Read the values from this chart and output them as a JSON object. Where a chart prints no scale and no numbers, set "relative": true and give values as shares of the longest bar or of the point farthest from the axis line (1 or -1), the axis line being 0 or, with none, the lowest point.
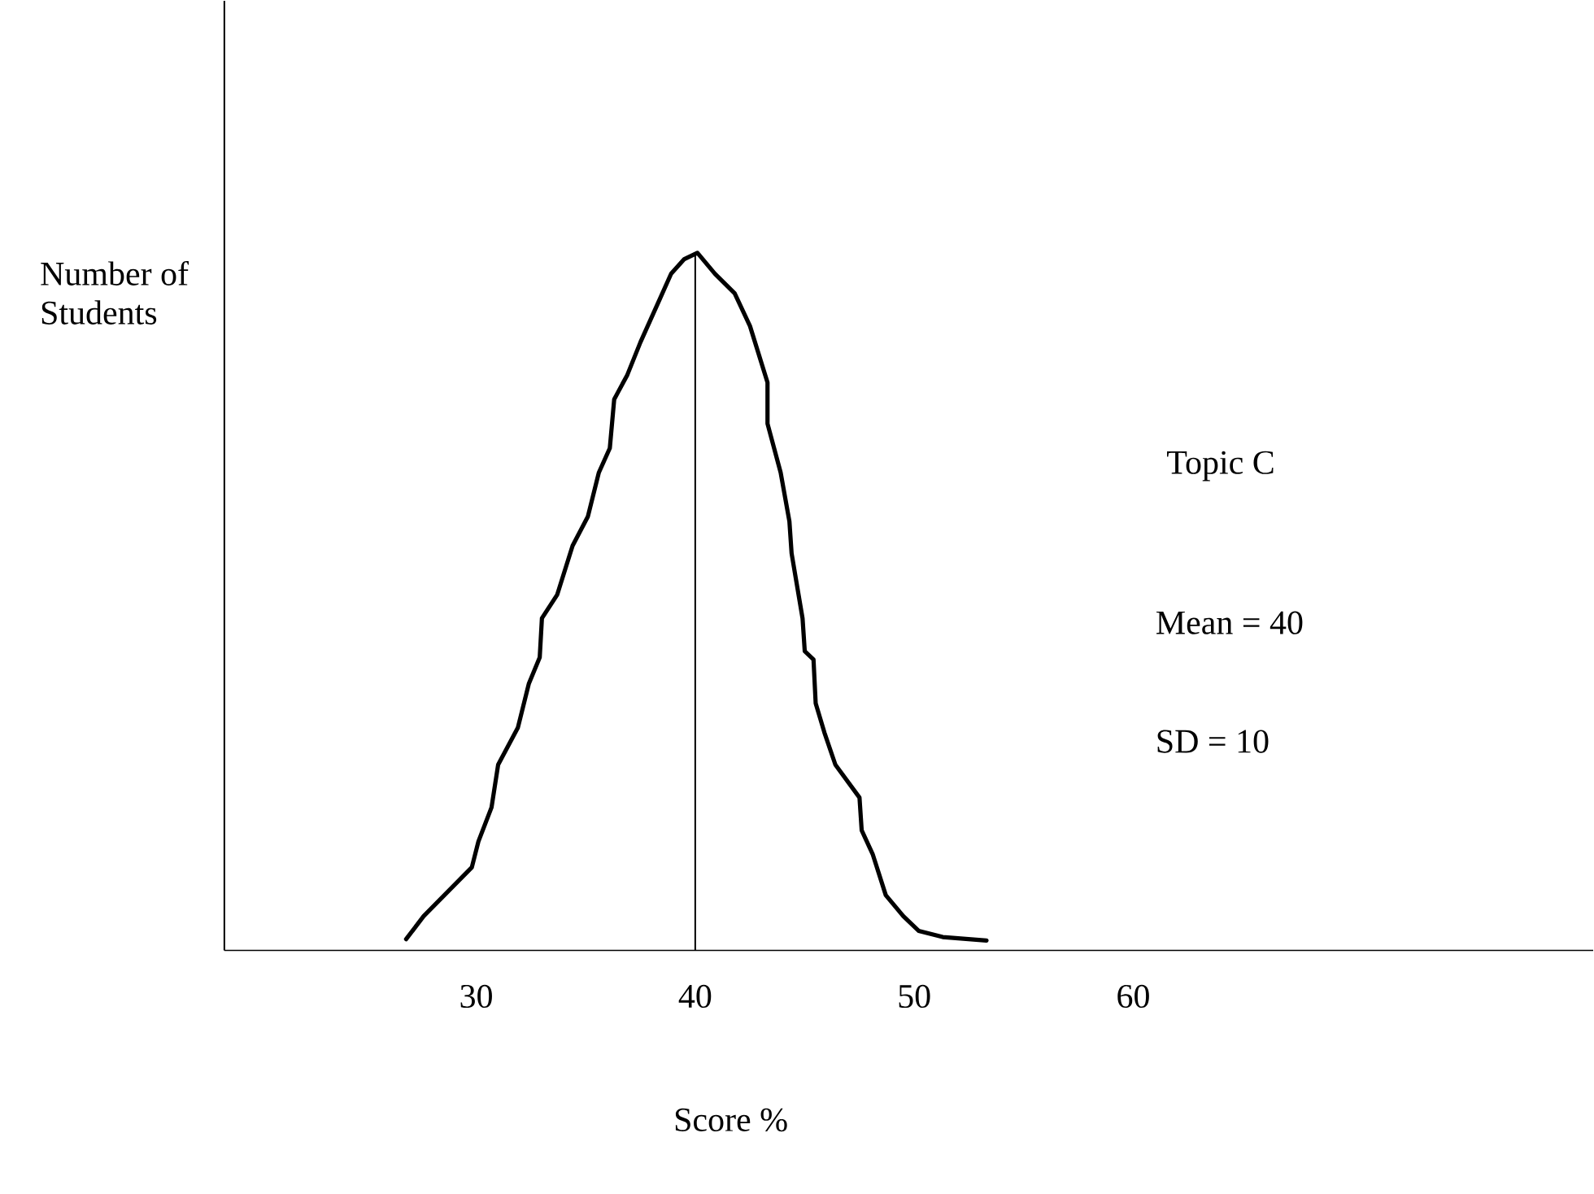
{
  "chart_data": {
    "type": "line",
    "relative": true,
    "xlabel": "Score %",
    "ylabel": "Number of Students",
    "annotations": [
      "Topic C",
      "Mean = 40",
      "SD = 10"
    ],
    "xlim": [
      18.5,
      81
    ],
    "xticks": [
      30,
      40,
      50,
      60
    ],
    "ref_lines": [
      {
        "axis": "x",
        "value": 40,
        "color": "#000000"
      }
    ],
    "series": [
      {
        "color": "#000000",
        "x": [
          26.8,
          27.6,
          29.8,
          30.1,
          30.7,
          31.0,
          31.9,
          32.4,
          32.9,
          33.0,
          33.7,
          34.4,
          35.1,
          35.6,
          36.1,
          36.3,
          36.9,
          37.5,
          38.3,
          38.9,
          39.5,
          40.1,
          40.9,
          41.8,
          42.5,
          43.3,
          43.3,
          43.9,
          44.3,
          44.4,
          44.9,
          45.0,
          45.4,
          45.5,
          45.9,
          46.4,
          47.5,
          47.6,
          48.1,
          48.7,
          49.5,
          50.2,
          51.3,
          53.3
        ],
        "values": [
          0.016,
          0.049,
          0.119,
          0.156,
          0.205,
          0.266,
          0.319,
          0.382,
          0.42,
          0.476,
          0.51,
          0.58,
          0.622,
          0.685,
          0.72,
          0.79,
          0.825,
          0.872,
          0.928,
          0.97,
          0.991,
          1.0,
          0.97,
          0.942,
          0.895,
          0.814,
          0.755,
          0.685,
          0.615,
          0.569,
          0.476,
          0.429,
          0.417,
          0.354,
          0.312,
          0.266,
          0.219,
          0.172,
          0.138,
          0.079,
          0.049,
          0.028,
          0.019,
          0.014
        ]
      }
    ]
  }
}
